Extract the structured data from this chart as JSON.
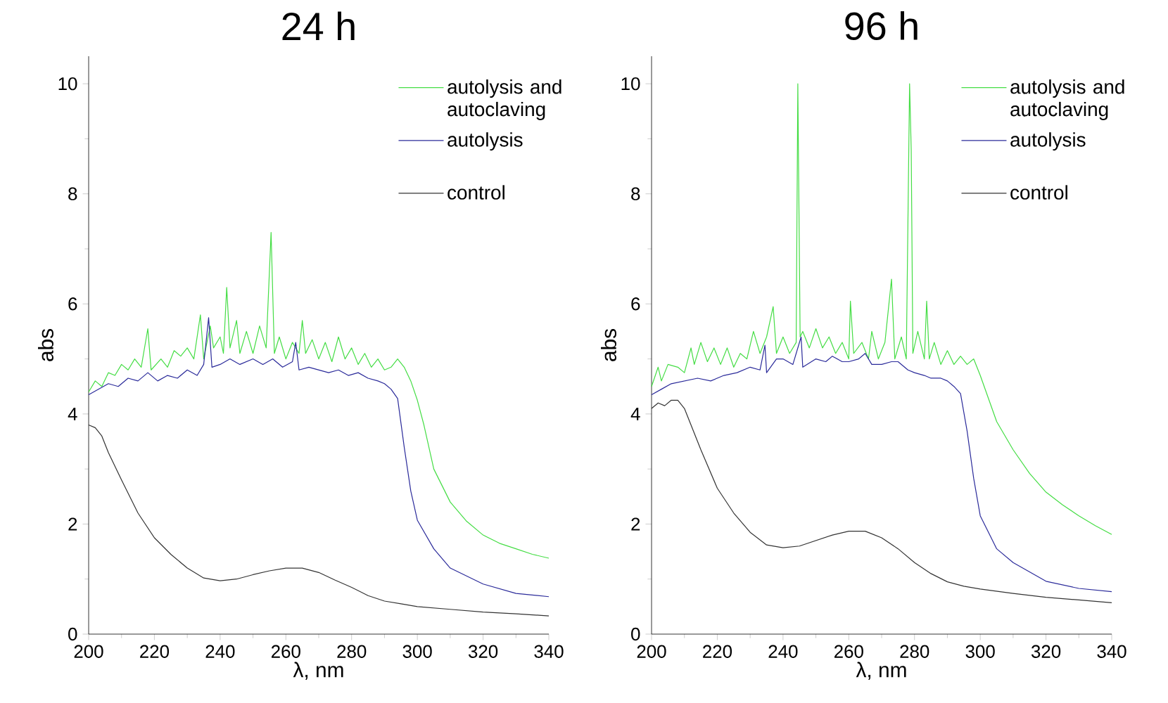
{
  "chart_data": [
    {
      "type": "line",
      "title": "24 h",
      "xlabel": "λ, nm",
      "ylabel": "abs",
      "xlim": [
        200,
        340
      ],
      "ylim": [
        0,
        10.5
      ],
      "xticks": [
        200,
        220,
        240,
        260,
        280,
        300,
        320,
        340
      ],
      "yticks": [
        0,
        2,
        4,
        6,
        8,
        10
      ],
      "legend": "top right",
      "series": [
        {
          "name": "autolysis and autoclaving",
          "color": "#44dd44",
          "x": [
            200,
            202,
            204,
            206,
            208,
            210,
            212,
            214,
            216,
            218,
            219,
            222,
            224,
            226,
            228,
            230,
            232,
            234,
            235,
            237,
            238,
            240,
            241,
            242,
            243,
            245,
            246,
            248,
            250,
            252,
            254,
            255.5,
            256.5,
            258,
            260,
            262,
            264,
            265,
            266,
            268,
            270,
            272,
            274,
            276,
            278,
            280,
            282,
            284,
            286,
            288,
            290,
            292,
            294,
            296,
            298,
            300,
            302,
            305,
            310,
            315,
            320,
            325,
            330,
            335,
            340
          ],
          "values": [
            4.4,
            4.6,
            4.5,
            4.75,
            4.7,
            4.9,
            4.8,
            5.0,
            4.85,
            5.55,
            4.8,
            5.0,
            4.85,
            5.15,
            5.05,
            5.2,
            5.0,
            5.8,
            5.0,
            5.6,
            5.2,
            5.4,
            5.1,
            6.3,
            5.2,
            5.7,
            5.1,
            5.5,
            5.1,
            5.6,
            5.2,
            7.3,
            5.1,
            5.4,
            5.0,
            5.3,
            5.1,
            5.7,
            5.1,
            5.35,
            5.0,
            5.3,
            4.95,
            5.4,
            5.0,
            5.2,
            4.9,
            5.1,
            4.85,
            5.0,
            4.8,
            4.85,
            5.0,
            4.85,
            4.6,
            4.25,
            3.8,
            3.0,
            2.4,
            2.05,
            1.8,
            1.65,
            1.55,
            1.45,
            1.38
          ]
        },
        {
          "name": "autolysis",
          "color": "#2a2a9a",
          "x": [
            200,
            203,
            206,
            209,
            212,
            215,
            218,
            221,
            224,
            227,
            230,
            233,
            235,
            236.5,
            237.5,
            240,
            243,
            246,
            250,
            253,
            256,
            259,
            262,
            263,
            264,
            267,
            270,
            273,
            276,
            279,
            282,
            285,
            288,
            290,
            292,
            294,
            296,
            298,
            300,
            305,
            310,
            320,
            330,
            340
          ],
          "values": [
            4.35,
            4.45,
            4.55,
            4.5,
            4.65,
            4.6,
            4.75,
            4.6,
            4.7,
            4.65,
            4.8,
            4.7,
            4.9,
            5.75,
            4.85,
            4.9,
            5.0,
            4.9,
            5.0,
            4.9,
            5.0,
            4.85,
            4.95,
            5.3,
            4.8,
            4.85,
            4.8,
            4.75,
            4.8,
            4.7,
            4.75,
            4.65,
            4.6,
            4.55,
            4.45,
            4.28,
            3.4,
            2.6,
            2.07,
            1.55,
            1.2,
            0.91,
            0.74,
            0.68
          ]
        },
        {
          "name": "control",
          "color": "#333333",
          "x": [
            200,
            202,
            204,
            206,
            210,
            215,
            220,
            225,
            230,
            235,
            240,
            245,
            250,
            255,
            260,
            265,
            270,
            275,
            280,
            285,
            290,
            295,
            300,
            310,
            320,
            330,
            340
          ],
          "values": [
            3.8,
            3.75,
            3.6,
            3.3,
            2.8,
            2.2,
            1.75,
            1.45,
            1.2,
            1.02,
            0.97,
            1.0,
            1.08,
            1.15,
            1.2,
            1.2,
            1.12,
            0.98,
            0.85,
            0.7,
            0.6,
            0.55,
            0.5,
            0.45,
            0.4,
            0.37,
            0.33
          ]
        }
      ]
    },
    {
      "type": "line",
      "title": "96 h",
      "xlabel": "λ, nm",
      "ylabel": "abs",
      "xlim": [
        200,
        340
      ],
      "ylim": [
        0,
        10.5
      ],
      "xticks": [
        200,
        220,
        240,
        260,
        280,
        300,
        320,
        340
      ],
      "yticks": [
        0,
        2,
        4,
        6,
        8,
        10
      ],
      "legend": "top right",
      "series": [
        {
          "name": "autolysis and autoclaving",
          "color": "#44dd44",
          "x": [
            200,
            202,
            203,
            205,
            208,
            210,
            212,
            213,
            215,
            217,
            219,
            221,
            223,
            225,
            227,
            229,
            231,
            233,
            235,
            237,
            238,
            240,
            242,
            244,
            244.5,
            245.2,
            246,
            248,
            250,
            252,
            254,
            256,
            258,
            260,
            260.5,
            261.5,
            264,
            266,
            267,
            269,
            271,
            273,
            274,
            276,
            277.5,
            278.5,
            279,
            279.5,
            281,
            283,
            283.7,
            284.5,
            286,
            288,
            290,
            292,
            294,
            296,
            298,
            300,
            305,
            310,
            315,
            320,
            325,
            330,
            335,
            340
          ],
          "values": [
            4.5,
            4.85,
            4.6,
            4.9,
            4.85,
            4.75,
            5.2,
            4.9,
            5.3,
            4.95,
            5.2,
            4.9,
            5.2,
            4.85,
            5.1,
            5.0,
            5.5,
            5.1,
            5.4,
            5.95,
            5.1,
            5.4,
            5.1,
            5.3,
            10,
            5.4,
            5.5,
            5.2,
            5.55,
            5.2,
            5.4,
            5.1,
            5.3,
            5.0,
            6.05,
            5.1,
            5.3,
            5.0,
            5.5,
            5.0,
            5.3,
            6.45,
            5.0,
            5.4,
            5.0,
            10,
            8.8,
            5.1,
            5.5,
            5.0,
            6.05,
            5.0,
            5.3,
            4.9,
            5.15,
            4.9,
            5.05,
            4.9,
            5.0,
            4.7,
            3.86,
            3.35,
            2.92,
            2.58,
            2.35,
            2.15,
            1.97,
            1.81
          ]
        },
        {
          "name": "autolysis",
          "color": "#2a2a9a",
          "x": [
            200,
            203,
            206,
            210,
            214,
            218,
            222,
            226,
            230,
            233,
            234.5,
            235,
            238,
            240,
            243,
            245.5,
            246,
            250,
            253,
            255,
            258,
            260,
            263,
            265,
            267,
            270,
            273,
            275,
            278,
            280,
            283,
            285,
            288,
            290,
            292,
            294,
            296,
            298,
            300,
            305,
            310,
            320,
            330,
            340
          ],
          "values": [
            4.35,
            4.45,
            4.55,
            4.6,
            4.65,
            4.6,
            4.7,
            4.75,
            4.85,
            4.8,
            5.25,
            4.75,
            5.0,
            5.0,
            4.9,
            5.4,
            4.85,
            5.0,
            4.95,
            5.05,
            4.95,
            4.95,
            5.0,
            5.1,
            4.9,
            4.9,
            4.95,
            4.95,
            4.8,
            4.75,
            4.7,
            4.65,
            4.65,
            4.6,
            4.5,
            4.37,
            3.69,
            2.83,
            2.15,
            1.55,
            1.3,
            0.96,
            0.83,
            0.77
          ]
        },
        {
          "name": "control",
          "color": "#333333",
          "x": [
            200,
            202,
            204,
            206,
            208,
            210,
            212,
            215,
            220,
            225,
            230,
            235,
            240,
            245,
            250,
            255,
            260,
            265,
            270,
            275,
            280,
            285,
            290,
            295,
            300,
            310,
            320,
            330,
            340
          ],
          "values": [
            4.1,
            4.2,
            4.15,
            4.25,
            4.25,
            4.1,
            3.8,
            3.35,
            2.65,
            2.2,
            1.85,
            1.62,
            1.57,
            1.6,
            1.7,
            1.8,
            1.87,
            1.87,
            1.75,
            1.55,
            1.3,
            1.1,
            0.95,
            0.87,
            0.82,
            0.74,
            0.67,
            0.62,
            0.57
          ]
        }
      ]
    }
  ]
}
